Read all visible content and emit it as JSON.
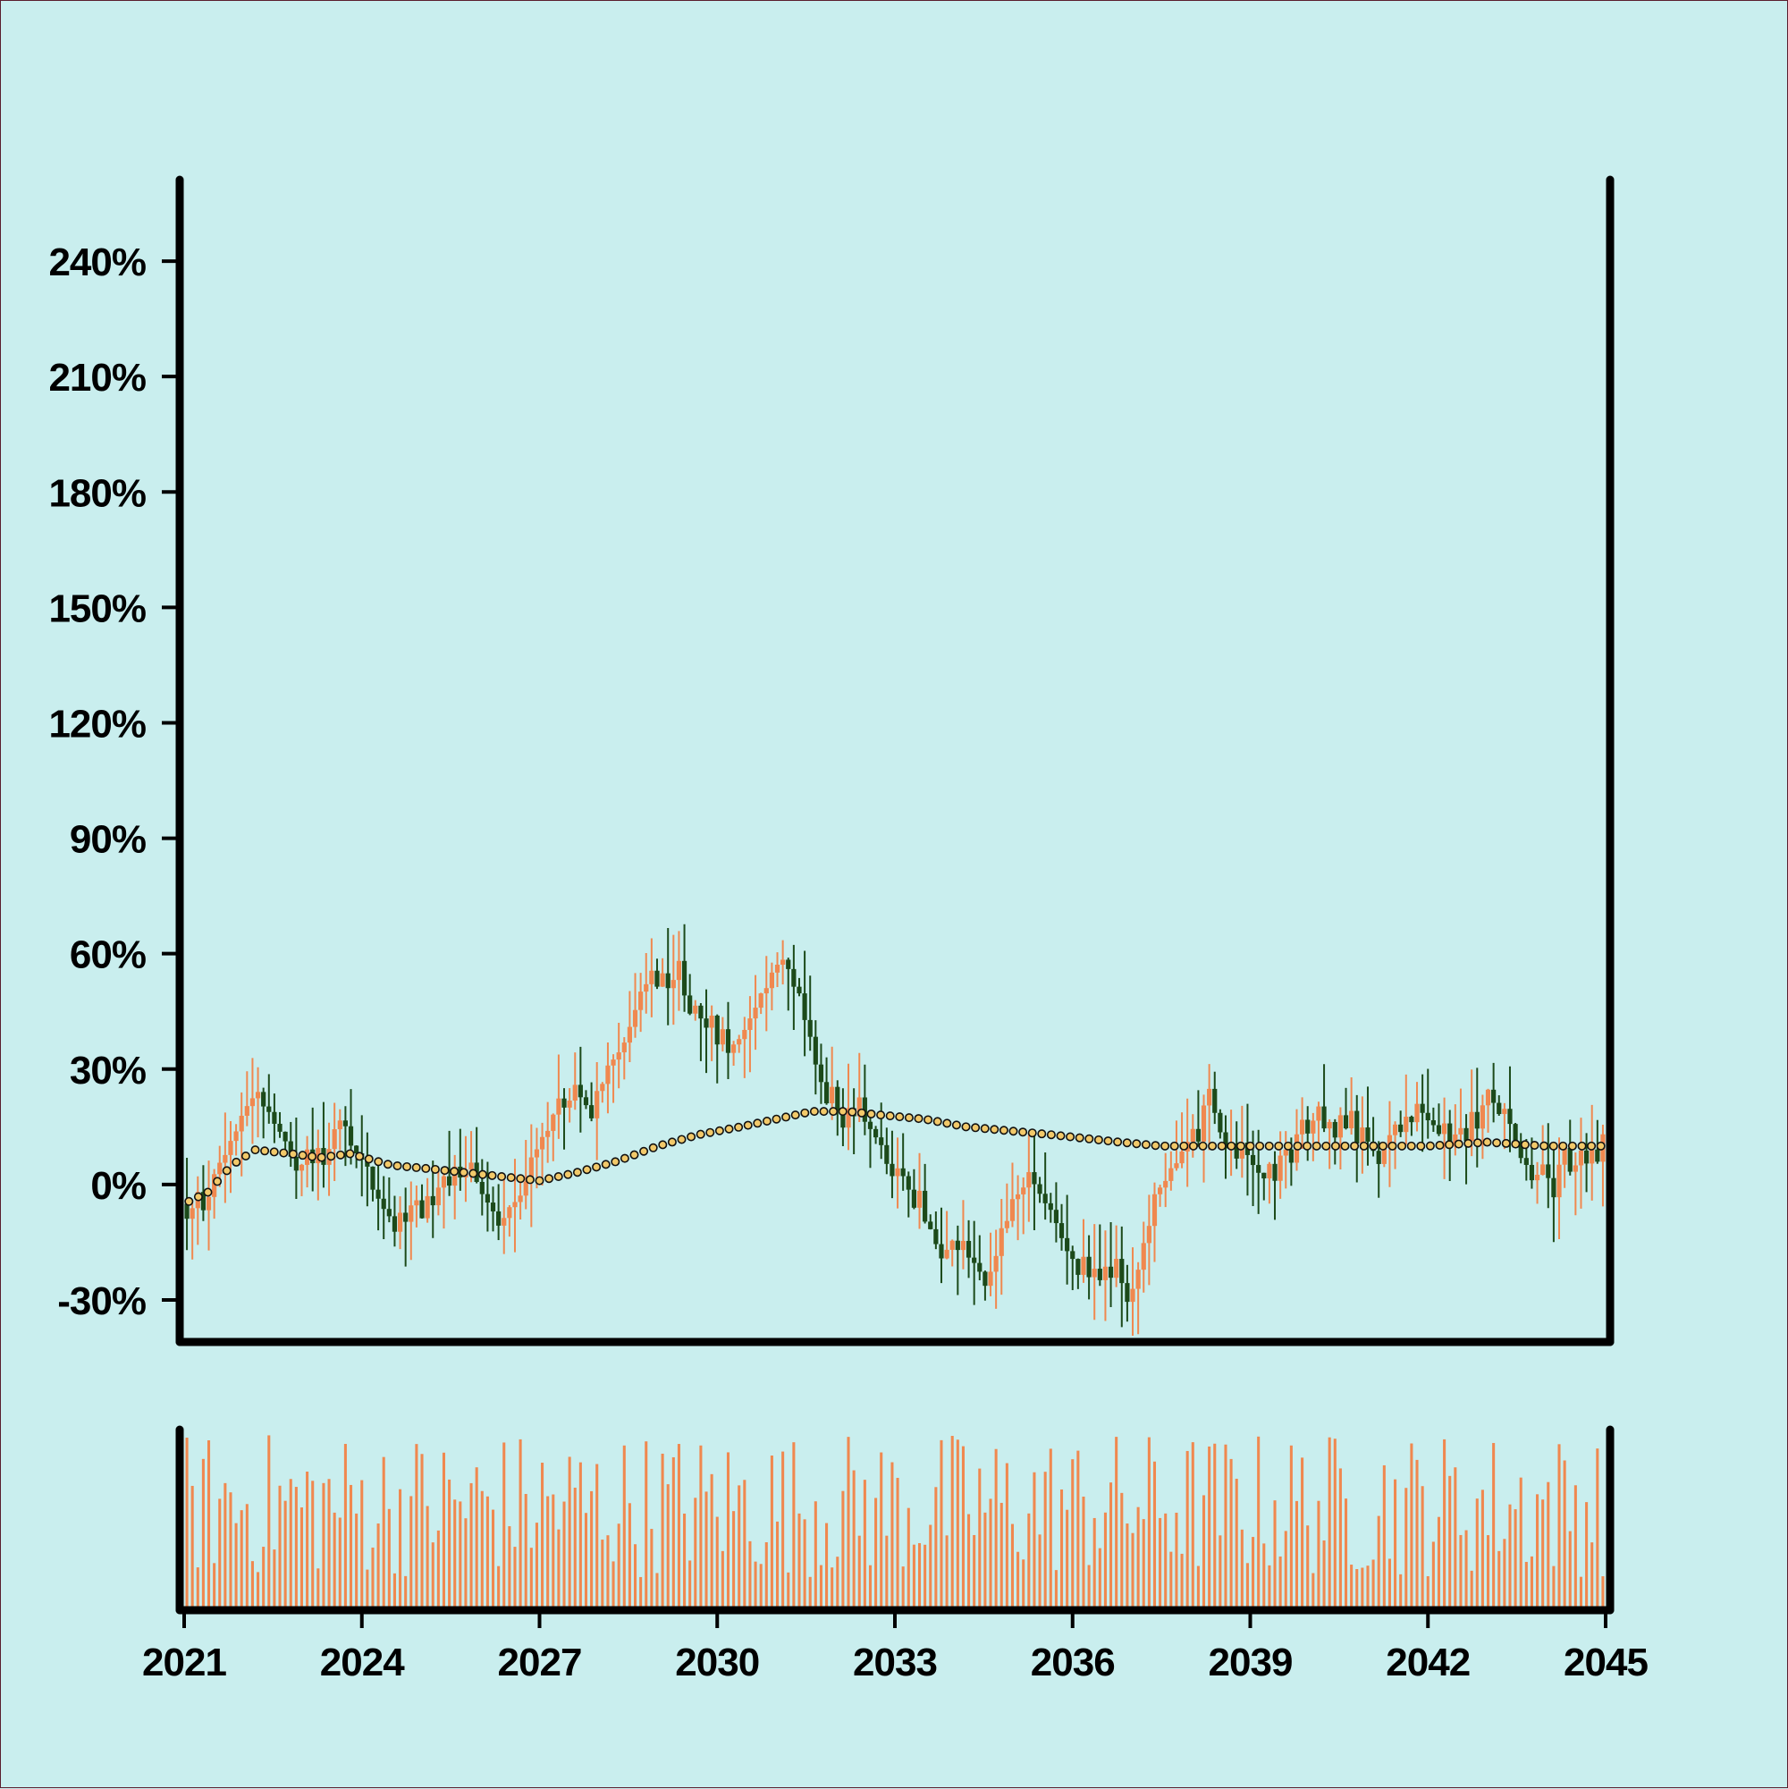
{
  "chart_data": {
    "type": "candlestick",
    "title": "",
    "xlabel": "",
    "ylabel": "",
    "x_ticks": [
      "2021",
      "2024",
      "2027",
      "2030",
      "2033",
      "2036",
      "2039",
      "2042",
      "2045"
    ],
    "y_ticks": [
      "-30%",
      "0%",
      "30%",
      "60%",
      "90%",
      "120%",
      "150%",
      "180%",
      "210%",
      "240%"
    ],
    "y_tick_values": [
      -30,
      0,
      30,
      60,
      90,
      120,
      150,
      180,
      210,
      240
    ],
    "xlim": [
      2021,
      2045
    ],
    "ylim": [
      -40,
      260
    ],
    "grid": false,
    "legend": "none",
    "colors": {
      "background": "#c9eeee",
      "up": "#f0884f",
      "down": "#1c4a1a",
      "moving_average_fill": "#f2c96a",
      "moving_average_edge": "#111111",
      "volume": "#f0884f",
      "axes": "#000000"
    },
    "price_anchors": [
      {
        "x": 2021.0,
        "y": -5
      },
      {
        "x": 2021.3,
        "y": -8
      },
      {
        "x": 2021.6,
        "y": 3
      },
      {
        "x": 2022.0,
        "y": 18
      },
      {
        "x": 2022.3,
        "y": 25
      },
      {
        "x": 2022.7,
        "y": 12
      },
      {
        "x": 2023.0,
        "y": 4
      },
      {
        "x": 2023.4,
        "y": 8
      },
      {
        "x": 2023.7,
        "y": 16
      },
      {
        "x": 2024.1,
        "y": 4
      },
      {
        "x": 2024.5,
        "y": -10
      },
      {
        "x": 2025.0,
        "y": -5
      },
      {
        "x": 2025.5,
        "y": 0
      },
      {
        "x": 2025.9,
        "y": 5
      },
      {
        "x": 2026.4,
        "y": -12
      },
      {
        "x": 2026.9,
        "y": 5
      },
      {
        "x": 2027.4,
        "y": 20
      },
      {
        "x": 2027.9,
        "y": 22
      },
      {
        "x": 2028.4,
        "y": 35
      },
      {
        "x": 2028.9,
        "y": 52
      },
      {
        "x": 2029.4,
        "y": 53
      },
      {
        "x": 2029.9,
        "y": 40
      },
      {
        "x": 2030.3,
        "y": 35
      },
      {
        "x": 2030.7,
        "y": 48
      },
      {
        "x": 2031.2,
        "y": 60
      },
      {
        "x": 2031.6,
        "y": 40
      },
      {
        "x": 2031.9,
        "y": 20
      },
      {
        "x": 2032.4,
        "y": 18
      },
      {
        "x": 2032.8,
        "y": 12
      },
      {
        "x": 2033.2,
        "y": 0
      },
      {
        "x": 2033.7,
        "y": -15
      },
      {
        "x": 2034.2,
        "y": -15
      },
      {
        "x": 2034.6,
        "y": -25
      },
      {
        "x": 2035.0,
        "y": -5
      },
      {
        "x": 2035.4,
        "y": 2
      },
      {
        "x": 2035.9,
        "y": -15
      },
      {
        "x": 2036.3,
        "y": -25
      },
      {
        "x": 2036.8,
        "y": -20
      },
      {
        "x": 2037.0,
        "y": -33
      },
      {
        "x": 2037.4,
        "y": -5
      },
      {
        "x": 2037.9,
        "y": 8
      },
      {
        "x": 2038.3,
        "y": 20
      },
      {
        "x": 2038.8,
        "y": 10
      },
      {
        "x": 2039.2,
        "y": 2
      },
      {
        "x": 2039.6,
        "y": 10
      },
      {
        "x": 2040.1,
        "y": 15
      },
      {
        "x": 2040.5,
        "y": 18
      },
      {
        "x": 2041.0,
        "y": 10
      },
      {
        "x": 2041.4,
        "y": 12
      },
      {
        "x": 2041.9,
        "y": 20
      },
      {
        "x": 2042.4,
        "y": 10
      },
      {
        "x": 2042.9,
        "y": 20
      },
      {
        "x": 2043.3,
        "y": 20
      },
      {
        "x": 2043.7,
        "y": 5
      },
      {
        "x": 2044.2,
        "y": 3
      },
      {
        "x": 2044.6,
        "y": 5
      },
      {
        "x": 2045.0,
        "y": 12
      }
    ],
    "moving_average": [
      {
        "x": 2021.0,
        "y": -5
      },
      {
        "x": 2021.4,
        "y": -2
      },
      {
        "x": 2021.8,
        "y": 5
      },
      {
        "x": 2022.2,
        "y": 9
      },
      {
        "x": 2022.8,
        "y": 8
      },
      {
        "x": 2023.3,
        "y": 7
      },
      {
        "x": 2023.8,
        "y": 8
      },
      {
        "x": 2024.5,
        "y": 5
      },
      {
        "x": 2025.2,
        "y": 4
      },
      {
        "x": 2025.8,
        "y": 3
      },
      {
        "x": 2026.4,
        "y": 2
      },
      {
        "x": 2027.0,
        "y": 1
      },
      {
        "x": 2027.6,
        "y": 3
      },
      {
        "x": 2028.3,
        "y": 6
      },
      {
        "x": 2029.0,
        "y": 10
      },
      {
        "x": 2029.7,
        "y": 13
      },
      {
        "x": 2030.4,
        "y": 15
      },
      {
        "x": 2031.0,
        "y": 17
      },
      {
        "x": 2031.6,
        "y": 19
      },
      {
        "x": 2032.2,
        "y": 19
      },
      {
        "x": 2032.8,
        "y": 18
      },
      {
        "x": 2033.5,
        "y": 17
      },
      {
        "x": 2034.2,
        "y": 15
      },
      {
        "x": 2034.9,
        "y": 14
      },
      {
        "x": 2035.6,
        "y": 13
      },
      {
        "x": 2036.2,
        "y": 12
      },
      {
        "x": 2036.8,
        "y": 11
      },
      {
        "x": 2037.5,
        "y": 10
      },
      {
        "x": 2038.2,
        "y": 10
      },
      {
        "x": 2039.0,
        "y": 10
      },
      {
        "x": 2040.0,
        "y": 10
      },
      {
        "x": 2041.0,
        "y": 10
      },
      {
        "x": 2042.0,
        "y": 10
      },
      {
        "x": 2043.0,
        "y": 11
      },
      {
        "x": 2044.0,
        "y": 10
      },
      {
        "x": 2045.0,
        "y": 10
      }
    ],
    "candle_count": 260,
    "volume_relative_range": [
      0.02,
      1.0
    ]
  }
}
